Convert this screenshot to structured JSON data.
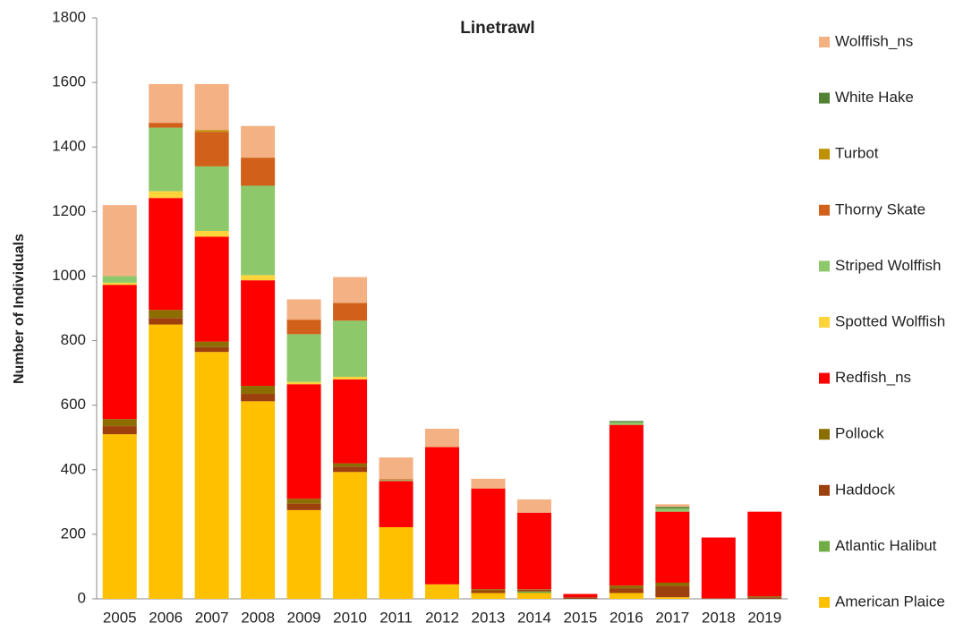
{
  "chart_data": {
    "type": "stacked_bar",
    "title": "Linetrawl",
    "y_label": "Number of Individuals",
    "categories": [
      "2005",
      "2006",
      "2007",
      "2008",
      "2009",
      "2010",
      "2011",
      "2012",
      "2013",
      "2014",
      "2015",
      "2016",
      "2017",
      "2018",
      "2019"
    ],
    "series": [
      {
        "name": "American Plaice",
        "color": "#ffc000",
        "values": [
          510,
          850,
          765,
          612,
          275,
          393,
          222,
          45,
          18,
          18,
          0,
          18,
          5,
          0,
          0
        ]
      },
      {
        "name": "Atlantic Halibut",
        "color": "#70ad47",
        "values": [
          0,
          0,
          0,
          0,
          0,
          0,
          0,
          0,
          0,
          5,
          0,
          0,
          0,
          0,
          0
        ]
      },
      {
        "name": "Haddock",
        "color": "#9e3f0e",
        "values": [
          25,
          20,
          15,
          23,
          20,
          17,
          0,
          0,
          7,
          5,
          5,
          15,
          35,
          2,
          5
        ]
      },
      {
        "name": "Pollock",
        "color": "#8c6d00",
        "values": [
          22,
          25,
          17,
          25,
          15,
          10,
          0,
          0,
          5,
          2,
          0,
          8,
          10,
          0,
          3
        ]
      },
      {
        "name": "Redfish_ns",
        "color": "#ff0000",
        "values": [
          416,
          347,
          325,
          327,
          355,
          260,
          143,
          425,
          312,
          237,
          10,
          498,
          220,
          188,
          262
        ]
      },
      {
        "name": "Spotted Wolffish",
        "color": "#ffd43a",
        "values": [
          7,
          21,
          18,
          16,
          7,
          8,
          0,
          0,
          0,
          0,
          0,
          0,
          0,
          0,
          0
        ]
      },
      {
        "name": "Striped Wolffish",
        "color": "#8dc86b",
        "values": [
          20,
          197,
          200,
          277,
          148,
          174,
          3,
          0,
          0,
          0,
          0,
          8,
          10,
          0,
          0
        ]
      },
      {
        "name": "Thorny Skate",
        "color": "#d0601a",
        "values": [
          0,
          15,
          107,
          87,
          45,
          55,
          3,
          0,
          0,
          0,
          0,
          0,
          0,
          0,
          0
        ]
      },
      {
        "name": "Turbot",
        "color": "#bf9000",
        "values": [
          0,
          0,
          5,
          0,
          0,
          0,
          0,
          0,
          0,
          0,
          0,
          0,
          0,
          0,
          0
        ]
      },
      {
        "name": "White Hake",
        "color": "#548235",
        "values": [
          0,
          0,
          0,
          0,
          0,
          0,
          0,
          0,
          0,
          0,
          0,
          4,
          5,
          0,
          0
        ]
      },
      {
        "name": "Wolffish_ns",
        "color": "#f4b183",
        "values": [
          220,
          120,
          143,
          98,
          63,
          80,
          67,
          57,
          30,
          41,
          0,
          0,
          8,
          0,
          0
        ]
      }
    ],
    "ylim": [
      0,
      1800
    ],
    "yticks": [
      0,
      200,
      400,
      600,
      800,
      1000,
      1200,
      1400,
      1600,
      1800
    ],
    "grid": false,
    "legend": "right"
  }
}
